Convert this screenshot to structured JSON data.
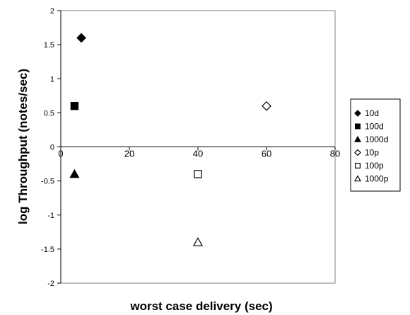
{
  "chart_data": {
    "type": "scatter",
    "xlabel": "worst case delivery (sec)",
    "ylabel": "log Throughput (notes/sec)",
    "xlim": [
      0,
      80
    ],
    "ylim": [
      -2,
      2
    ],
    "x_ticks": [
      0,
      20,
      40,
      60,
      80
    ],
    "y_ticks": [
      -2,
      -1.5,
      -1,
      -0.5,
      0,
      0.5,
      1,
      1.5,
      2
    ],
    "grid": false,
    "legend_position": "right",
    "series": [
      {
        "name": "10d",
        "marker": "diamond",
        "filled": true,
        "points": [
          {
            "x": 6,
            "y": 1.6
          }
        ]
      },
      {
        "name": "100d",
        "marker": "square",
        "filled": true,
        "points": [
          {
            "x": 4,
            "y": 0.6
          }
        ]
      },
      {
        "name": "1000d",
        "marker": "triangle",
        "filled": true,
        "points": [
          {
            "x": 4,
            "y": -0.4
          }
        ]
      },
      {
        "name": "10p",
        "marker": "diamond",
        "filled": false,
        "points": [
          {
            "x": 60,
            "y": 0.6
          }
        ]
      },
      {
        "name": "100p",
        "marker": "square",
        "filled": false,
        "points": [
          {
            "x": 40,
            "y": -0.4
          }
        ]
      },
      {
        "name": "1000p",
        "marker": "triangle",
        "filled": false,
        "points": [
          {
            "x": 40,
            "y": -1.4
          }
        ]
      }
    ]
  }
}
